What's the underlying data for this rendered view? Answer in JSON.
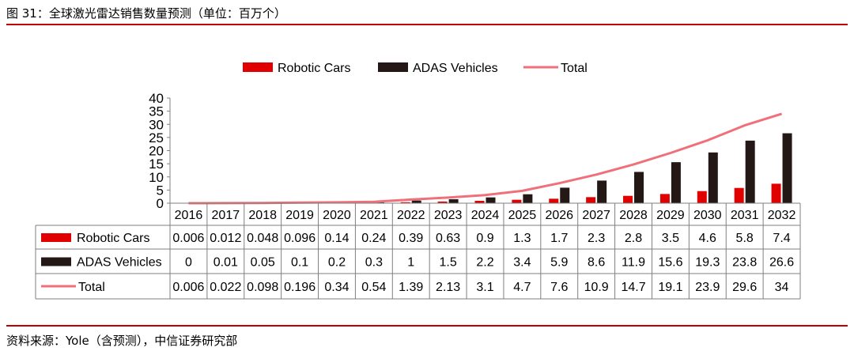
{
  "header": {
    "title": "图 31：全球激光雷达销售数量预测（单位：百万个）"
  },
  "footer": {
    "source": "资料来源：Yole（含预测），中信证券研究部"
  },
  "colors": {
    "robotic": "#e10000",
    "adas": "#231815",
    "total": "#f0707a",
    "accent_line": "#c00000"
  },
  "chart_data": {
    "type": "bar",
    "x": [
      "2016",
      "2017",
      "2018",
      "2019",
      "2020",
      "2021",
      "2022",
      "2023",
      "2024",
      "2025",
      "2026",
      "2027",
      "2028",
      "2029",
      "2030",
      "2031",
      "2032"
    ],
    "series": [
      {
        "name": "Robotic Cars",
        "type": "bar",
        "labels": [
          "0.006",
          "0.012",
          "0.048",
          "0.096",
          "0.14",
          "0.24",
          "0.39",
          "0.63",
          "0.9",
          "1.3",
          "1.7",
          "2.3",
          "2.8",
          "3.5",
          "4.6",
          "5.8",
          "7.4"
        ],
        "values": [
          0.006,
          0.012,
          0.048,
          0.096,
          0.14,
          0.24,
          0.39,
          0.63,
          0.9,
          1.3,
          1.7,
          2.3,
          2.8,
          3.5,
          4.6,
          5.8,
          7.4
        ]
      },
      {
        "name": "ADAS Vehicles",
        "type": "bar",
        "labels": [
          "0",
          "0.01",
          "0.05",
          "0.1",
          "0.2",
          "0.3",
          "1",
          "1.5",
          "2.2",
          "3.4",
          "5.9",
          "8.6",
          "11.9",
          "15.6",
          "19.3",
          "23.8",
          "26.6"
        ],
        "values": [
          0,
          0.01,
          0.05,
          0.1,
          0.2,
          0.3,
          1,
          1.5,
          2.2,
          3.4,
          5.9,
          8.6,
          11.9,
          15.6,
          19.3,
          23.8,
          26.6
        ]
      },
      {
        "name": "Total",
        "type": "line",
        "labels": [
          "0.006",
          "0.022",
          "0.098",
          "0.196",
          "0.34",
          "0.54",
          "1.39",
          "2.13",
          "3.1",
          "4.7",
          "7.6",
          "10.9",
          "14.7",
          "19.1",
          "23.9",
          "29.6",
          "34"
        ],
        "values": [
          0.006,
          0.022,
          0.098,
          0.196,
          0.34,
          0.54,
          1.39,
          2.13,
          3.1,
          4.7,
          7.6,
          10.9,
          14.7,
          19.1,
          23.9,
          29.6,
          34
        ]
      }
    ],
    "y_ticks": [
      "0",
      "5",
      "10",
      "15",
      "20",
      "25",
      "30",
      "35",
      "40"
    ],
    "ylim": [
      0,
      40
    ],
    "legend": "top-center",
    "data_table": true,
    "grid": false
  }
}
